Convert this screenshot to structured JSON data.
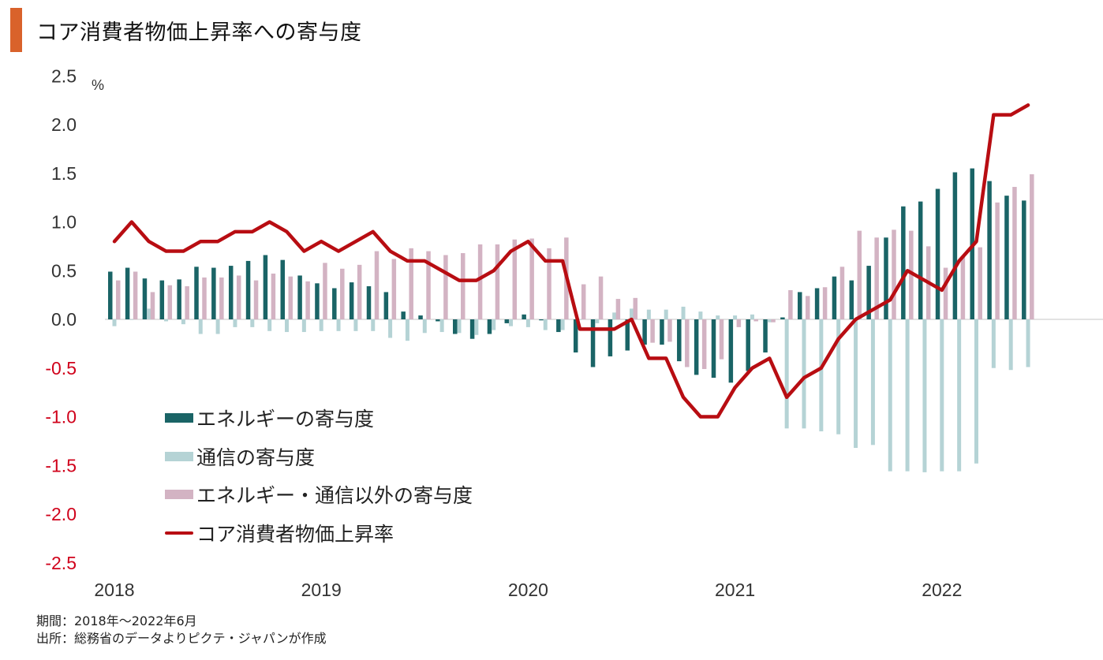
{
  "header": {
    "title": "コア消費者物価上昇率への寄与度",
    "accent_color": "#D9622B"
  },
  "footer": {
    "period": "期間：2018年～2022年6月",
    "source": "出所：総務省のデータよりピクテ・ジャパンが作成"
  },
  "chart_data": {
    "type": "bar+line",
    "title": "コア消費者物価上昇率への寄与度",
    "ylabel": "%",
    "xlabel": "",
    "ylim": [
      -2.5,
      2.5
    ],
    "yticks": [
      "2.5",
      "2.0",
      "1.5",
      "1.0",
      "0.5",
      "0.0",
      "-0.5",
      "-1.0",
      "-1.5",
      "-2.0",
      "-2.5"
    ],
    "ytick_values": [
      2.5,
      2.0,
      1.5,
      1.0,
      0.5,
      0.0,
      -0.5,
      -1.0,
      -1.5,
      -2.0,
      -2.5
    ],
    "negative_tick_color": "#D0021B",
    "positive_tick_color": "#333333",
    "xtick_labels": [
      "2018",
      "2019",
      "2020",
      "2021",
      "2022"
    ],
    "xtick_month_index": [
      0,
      12,
      24,
      36,
      48
    ],
    "period_start": "2018-01",
    "period_end": "2022-06",
    "grid": false,
    "legend_position": "lower-left",
    "months": [
      "2018-01",
      "2018-02",
      "2018-03",
      "2018-04",
      "2018-05",
      "2018-06",
      "2018-07",
      "2018-08",
      "2018-09",
      "2018-10",
      "2018-11",
      "2018-12",
      "2019-01",
      "2019-02",
      "2019-03",
      "2019-04",
      "2019-05",
      "2019-06",
      "2019-07",
      "2019-08",
      "2019-09",
      "2019-10",
      "2019-11",
      "2019-12",
      "2020-01",
      "2020-02",
      "2020-03",
      "2020-04",
      "2020-05",
      "2020-06",
      "2020-07",
      "2020-08",
      "2020-09",
      "2020-10",
      "2020-11",
      "2020-12",
      "2021-01",
      "2021-02",
      "2021-03",
      "2021-04",
      "2021-05",
      "2021-06",
      "2021-07",
      "2021-08",
      "2021-09",
      "2021-10",
      "2021-11",
      "2021-12",
      "2022-01",
      "2022-02",
      "2022-03",
      "2022-04",
      "2022-05",
      "2022-06"
    ],
    "series": [
      {
        "name": "エネルギーの寄与度",
        "kind": "bar",
        "color": "#1A6466",
        "values": [
          0.49,
          0.53,
          0.42,
          0.4,
          0.41,
          0.54,
          0.53,
          0.55,
          0.6,
          0.66,
          0.61,
          0.45,
          0.37,
          0.32,
          0.38,
          0.34,
          0.28,
          0.08,
          0.04,
          -0.02,
          -0.15,
          -0.2,
          -0.15,
          -0.04,
          0.05,
          -0.01,
          -0.13,
          -0.34,
          -0.49,
          -0.38,
          -0.32,
          -0.26,
          -0.26,
          -0.43,
          -0.57,
          -0.6,
          -0.65,
          -0.53,
          -0.34,
          0.02,
          0.28,
          0.32,
          0.44,
          0.4,
          0.55,
          0.84,
          1.16,
          1.21,
          1.34,
          1.51,
          1.55,
          1.42,
          1.27,
          1.22
        ]
      },
      {
        "name": "通信の寄与度",
        "kind": "bar",
        "color": "#B5D3D5",
        "values": [
          -0.07,
          0.0,
          0.11,
          -0.02,
          -0.05,
          -0.15,
          -0.15,
          -0.08,
          -0.08,
          -0.12,
          -0.13,
          -0.13,
          -0.12,
          -0.12,
          -0.12,
          -0.12,
          -0.19,
          -0.22,
          -0.14,
          -0.13,
          -0.14,
          -0.16,
          -0.11,
          -0.07,
          -0.08,
          -0.11,
          -0.11,
          0.0,
          -0.04,
          0.07,
          0.11,
          0.1,
          0.1,
          0.13,
          0.08,
          0.04,
          0.04,
          0.05,
          -0.03,
          -1.12,
          -1.12,
          -1.15,
          -1.18,
          -1.32,
          -1.29,
          -1.56,
          -1.56,
          -1.57,
          -1.56,
          -1.56,
          -1.48,
          -0.5,
          -0.52,
          -0.49
        ]
      },
      {
        "name": "エネルギー・通信以外の寄与度",
        "kind": "bar",
        "color": "#D3B3C3",
        "values": [
          0.4,
          0.49,
          0.28,
          0.35,
          0.34,
          0.43,
          0.43,
          0.45,
          0.4,
          0.47,
          0.44,
          0.39,
          0.58,
          0.52,
          0.56,
          0.7,
          0.62,
          0.73,
          0.7,
          0.66,
          0.68,
          0.77,
          0.77,
          0.82,
          0.83,
          0.73,
          0.84,
          0.36,
          0.44,
          0.21,
          0.22,
          -0.24,
          -0.23,
          -0.49,
          -0.51,
          -0.41,
          -0.08,
          -0.02,
          -0.03,
          0.3,
          0.24,
          0.33,
          0.54,
          0.91,
          0.84,
          0.92,
          0.91,
          0.75,
          0.53,
          0.64,
          0.74,
          1.2,
          1.36,
          1.49
        ]
      },
      {
        "name": "コア消費者物価上昇率",
        "kind": "line",
        "color": "#B80D12",
        "values": [
          0.8,
          1.0,
          0.8,
          0.7,
          0.7,
          0.8,
          0.8,
          0.9,
          0.9,
          1.0,
          0.9,
          0.7,
          0.8,
          0.7,
          0.8,
          0.9,
          0.7,
          0.6,
          0.6,
          0.5,
          0.4,
          0.4,
          0.5,
          0.7,
          0.8,
          0.6,
          0.6,
          -0.1,
          -0.1,
          -0.1,
          0.0,
          -0.4,
          -0.4,
          -0.8,
          -1.0,
          -1.0,
          -0.7,
          -0.5,
          -0.4,
          -0.8,
          -0.6,
          -0.5,
          -0.2,
          0.0,
          0.1,
          0.2,
          0.5,
          0.4,
          0.3,
          0.6,
          0.8,
          2.1,
          2.1,
          2.2
        ]
      }
    ]
  }
}
